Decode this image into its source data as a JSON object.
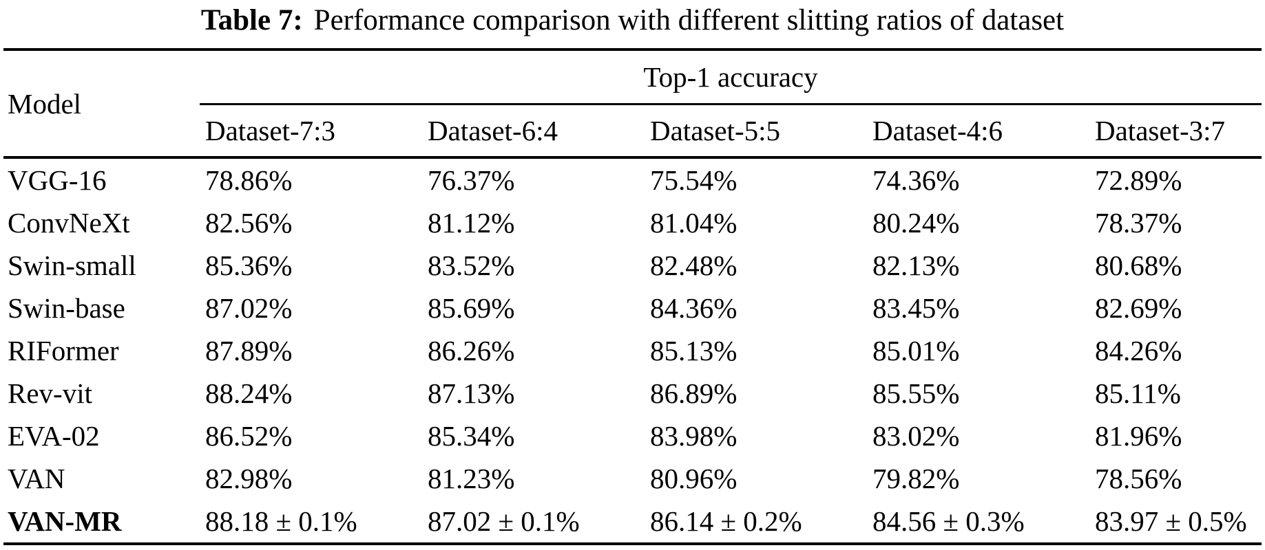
{
  "caption": {
    "label": "Table 7:",
    "text": "Performance comparison with different slitting ratios of dataset"
  },
  "chart_data": {
    "type": "table",
    "title": "Table 7: Performance comparison with different slitting ratios of dataset",
    "row_header": "Model",
    "group_header": "Top-1 accuracy",
    "columns": [
      "Dataset-7:3",
      "Dataset-6:4",
      "Dataset-5:5",
      "Dataset-4:6",
      "Dataset-3:7"
    ],
    "rows": [
      {
        "model": "VGG-16",
        "values": [
          "78.86%",
          "76.37%",
          "75.54%",
          "74.36%",
          "72.89%"
        ]
      },
      {
        "model": "ConvNeXt",
        "values": [
          "82.56%",
          "81.12%",
          "81.04%",
          "80.24%",
          "78.37%"
        ]
      },
      {
        "model": "Swin-small",
        "values": [
          "85.36%",
          "83.52%",
          "82.48%",
          "82.13%",
          "80.68%"
        ]
      },
      {
        "model": "Swin-base",
        "values": [
          "87.02%",
          "85.69%",
          "84.36%",
          "83.45%",
          "82.69%"
        ]
      },
      {
        "model": "RIFormer",
        "values": [
          "87.89%",
          "86.26%",
          "85.13%",
          "85.01%",
          "84.26%"
        ]
      },
      {
        "model": "Rev-vit",
        "values": [
          "88.24%",
          "87.13%",
          "86.89%",
          "85.55%",
          "85.11%"
        ]
      },
      {
        "model": "EVA-02",
        "values": [
          "86.52%",
          "85.34%",
          "83.98%",
          "83.02%",
          "81.96%"
        ]
      },
      {
        "model": "VAN",
        "values": [
          "82.98%",
          "81.23%",
          "80.96%",
          "79.82%",
          "78.56%"
        ]
      },
      {
        "model": "VAN-MR",
        "values": [
          "88.18 ± 0.1%",
          "87.02 ± 0.1%",
          "86.14 ± 0.2%",
          "84.56 ± 0.3%",
          "83.97 ± 0.5%"
        ]
      }
    ]
  },
  "colors": {
    "text": "#000000",
    "background": "#ffffff",
    "rule": "#000000"
  }
}
